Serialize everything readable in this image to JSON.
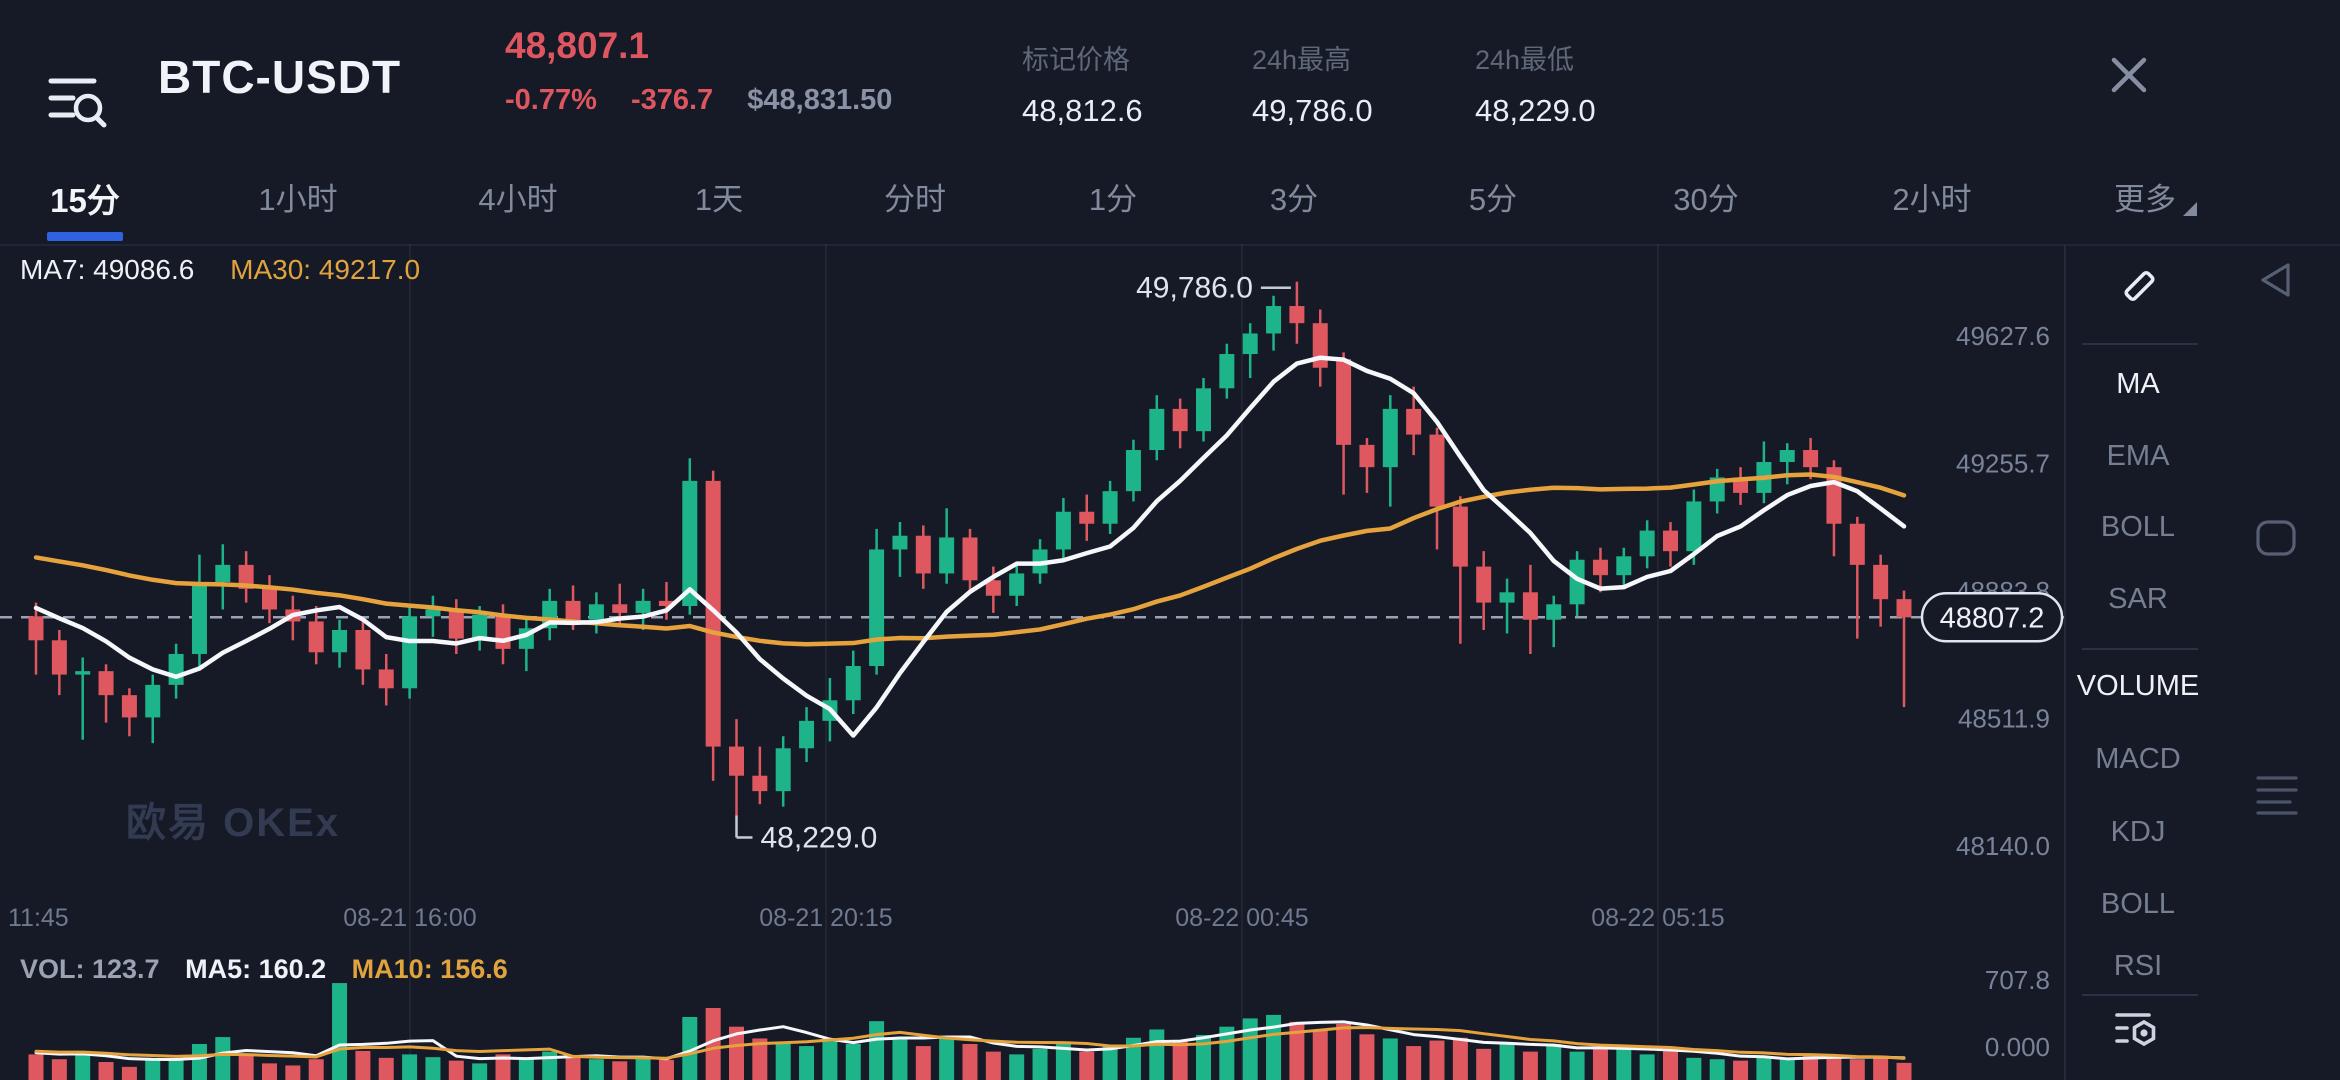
{
  "header": {
    "title": "BTC-USDT",
    "last_price": "48,807.1",
    "change_percent": "-0.77%",
    "change_value": "-376.7",
    "fiat_value": "$48,831.50",
    "stats": [
      {
        "label": "标记价格",
        "value": "48,812.6"
      },
      {
        "label": "24h最高",
        "value": "49,786.0"
      },
      {
        "label": "24h最低",
        "value": "48,229.0"
      }
    ]
  },
  "tabs": {
    "items": [
      "15分",
      "1小时",
      "4小时",
      "1天",
      "分时",
      "1分",
      "3分",
      "5分",
      "30分",
      "2小时"
    ],
    "active_index": 0,
    "more_label": "更多"
  },
  "sidebar": {
    "overlays": [
      {
        "label": "MA",
        "active": true
      },
      {
        "label": "EMA",
        "active": false
      },
      {
        "label": "BOLL",
        "active": false
      },
      {
        "label": "SAR",
        "active": false
      }
    ],
    "indicators": [
      {
        "label": "VOLUME",
        "active": true
      },
      {
        "label": "MACD",
        "active": false
      },
      {
        "label": "KDJ",
        "active": false
      },
      {
        "label": "BOLL",
        "active": false
      },
      {
        "label": "RSI",
        "active": false
      }
    ]
  },
  "watermark": "欧易 OKEx",
  "chart_data": {
    "type": "candlestick",
    "timeframe": "15分",
    "legend": {
      "ma7": "MA7: 49086.6",
      "ma30": "MA30: 49217.0"
    },
    "volume_legend": {
      "vol": "VOL: 123.7",
      "ma5": "MA5: 160.2",
      "ma10": "MA10: 156.6"
    },
    "y_axis": {
      "ticks": [
        49627.6,
        49255.7,
        48883.8,
        48511.9,
        48140.0
      ]
    },
    "volume_axis": {
      "ticks": [
        "707.8",
        "0.000"
      ],
      "max": 707.8
    },
    "x_axis": {
      "labels": [
        "11:45",
        "08-21 16:00",
        "08-21 20:15",
        "08-22 00:45",
        "08-22 05:15"
      ]
    },
    "annotations": {
      "high": {
        "text": "49,786.0",
        "index": 54
      },
      "low": {
        "text": "48,229.0",
        "index": 30
      },
      "current_price": {
        "text": "48807.2",
        "value": 48807.2
      }
    },
    "colors": {
      "up": "#1eb489",
      "down": "#e0585f",
      "ma_fast": "#f5f7fa",
      "ma_slow": "#e6a23c",
      "dashed": "#9aa3b5",
      "axis_text": "#79839a",
      "grid": "rgba(255,255,255,0.05)"
    },
    "ma_config": {
      "price": [
        {
          "period": 7,
          "seed": 48850
        },
        {
          "period": 30,
          "seed": 48990
        }
      ],
      "volume": [
        {
          "period": 5,
          "seed": 200
        },
        {
          "period": 10,
          "seed": 210
        }
      ]
    },
    "candles": [
      [
        48810,
        48850,
        48640,
        48740
      ],
      [
        48740,
        48770,
        48580,
        48640
      ],
      [
        48640,
        48690,
        48450,
        48650
      ],
      [
        48650,
        48670,
        48500,
        48580
      ],
      [
        48580,
        48600,
        48460,
        48515
      ],
      [
        48515,
        48640,
        48440,
        48610
      ],
      [
        48610,
        48730,
        48570,
        48700
      ],
      [
        48700,
        48990,
        48660,
        48910
      ],
      [
        48910,
        49020,
        48830,
        48960
      ],
      [
        48960,
        49000,
        48850,
        48890
      ],
      [
        48890,
        48930,
        48790,
        48830
      ],
      [
        48830,
        48870,
        48740,
        48795
      ],
      [
        48795,
        48840,
        48670,
        48705
      ],
      [
        48705,
        48800,
        48660,
        48770
      ],
      [
        48770,
        48800,
        48610,
        48655
      ],
      [
        48655,
        48700,
        48550,
        48600
      ],
      [
        48600,
        48840,
        48570,
        48810
      ],
      [
        48810,
        48870,
        48750,
        48830
      ],
      [
        48830,
        48860,
        48700,
        48745
      ],
      [
        48745,
        48840,
        48710,
        48815
      ],
      [
        48815,
        48845,
        48670,
        48715
      ],
      [
        48715,
        48800,
        48650,
        48775
      ],
      [
        48775,
        48890,
        48740,
        48855
      ],
      [
        48855,
        48900,
        48770,
        48800
      ],
      [
        48800,
        48880,
        48760,
        48845
      ],
      [
        48845,
        48905,
        48780,
        48820
      ],
      [
        48820,
        48890,
        48770,
        48855
      ],
      [
        48855,
        48910,
        48800,
        48840
      ],
      [
        48840,
        49271,
        48815,
        49205
      ],
      [
        49205,
        49235,
        48330,
        48430
      ],
      [
        48430,
        48510,
        48229,
        48345
      ],
      [
        48345,
        48430,
        48262,
        48300
      ],
      [
        48300,
        48460,
        48255,
        48425
      ],
      [
        48425,
        48545,
        48385,
        48505
      ],
      [
        48505,
        48630,
        48445,
        48565
      ],
      [
        48565,
        48710,
        48525,
        48665
      ],
      [
        48665,
        49065,
        48640,
        49005
      ],
      [
        49005,
        49085,
        48925,
        49045
      ],
      [
        49045,
        49075,
        48890,
        48935
      ],
      [
        48935,
        49125,
        48905,
        49040
      ],
      [
        49040,
        49065,
        48875,
        48915
      ],
      [
        48915,
        48955,
        48820,
        48870
      ],
      [
        48870,
        48965,
        48840,
        48935
      ],
      [
        48935,
        49035,
        48905,
        49005
      ],
      [
        49005,
        49155,
        48975,
        49115
      ],
      [
        49115,
        49165,
        49030,
        49080
      ],
      [
        49080,
        49205,
        49050,
        49175
      ],
      [
        49175,
        49325,
        49145,
        49295
      ],
      [
        49295,
        49455,
        49265,
        49415
      ],
      [
        49415,
        49445,
        49300,
        49350
      ],
      [
        49350,
        49505,
        49320,
        49475
      ],
      [
        49475,
        49605,
        49445,
        49575
      ],
      [
        49575,
        49665,
        49505,
        49635
      ],
      [
        49635,
        49745,
        49585,
        49715
      ],
      [
        49715,
        49786,
        49605,
        49665
      ],
      [
        49665,
        49705,
        49480,
        49535
      ],
      [
        49560,
        49580,
        49165,
        49310
      ],
      [
        49310,
        49330,
        49170,
        49245
      ],
      [
        49245,
        49455,
        49130,
        49415
      ],
      [
        49415,
        49480,
        49280,
        49340
      ],
      [
        49340,
        49360,
        49005,
        49130
      ],
      [
        49130,
        49160,
        48730,
        48955
      ],
      [
        48955,
        49000,
        48770,
        48850
      ],
      [
        48850,
        48920,
        48760,
        48880
      ],
      [
        48880,
        48960,
        48700,
        48800
      ],
      [
        48800,
        48870,
        48720,
        48845
      ],
      [
        48845,
        49000,
        48810,
        48975
      ],
      [
        48975,
        49010,
        48880,
        48930
      ],
      [
        48930,
        49010,
        48895,
        48985
      ],
      [
        48985,
        49090,
        48950,
        49060
      ],
      [
        49060,
        49085,
        48955,
        49000
      ],
      [
        49000,
        49180,
        48960,
        49145
      ],
      [
        49145,
        49240,
        49110,
        49215
      ],
      [
        49215,
        49245,
        49135,
        49170
      ],
      [
        49170,
        49320,
        49140,
        49260
      ],
      [
        49260,
        49315,
        49195,
        49295
      ],
      [
        49295,
        49330,
        49210,
        49245
      ],
      [
        49245,
        49265,
        48985,
        49080
      ],
      [
        49080,
        49100,
        48745,
        48960
      ],
      [
        48960,
        48990,
        48780,
        48860
      ],
      [
        48860,
        48885,
        48545,
        48807
      ]
    ],
    "volumes": [
      185,
      150,
      210,
      130,
      95,
      160,
      145,
      260,
      310,
      190,
      120,
      105,
      150,
      700,
      210,
      160,
      185,
      165,
      140,
      120,
      185,
      160,
      205,
      175,
      150,
      135,
      160,
      145,
      455,
      520,
      385,
      300,
      265,
      245,
      280,
      260,
      425,
      305,
      245,
      320,
      260,
      205,
      185,
      225,
      265,
      205,
      245,
      305,
      365,
      285,
      325,
      385,
      445,
      470,
      420,
      360,
      405,
      330,
      300,
      245,
      285,
      305,
      225,
      265,
      205,
      260,
      205,
      225,
      245,
      185,
      225,
      160,
      150,
      140,
      165,
      150,
      190,
      170,
      150,
      167.3,
      123.7
    ]
  }
}
